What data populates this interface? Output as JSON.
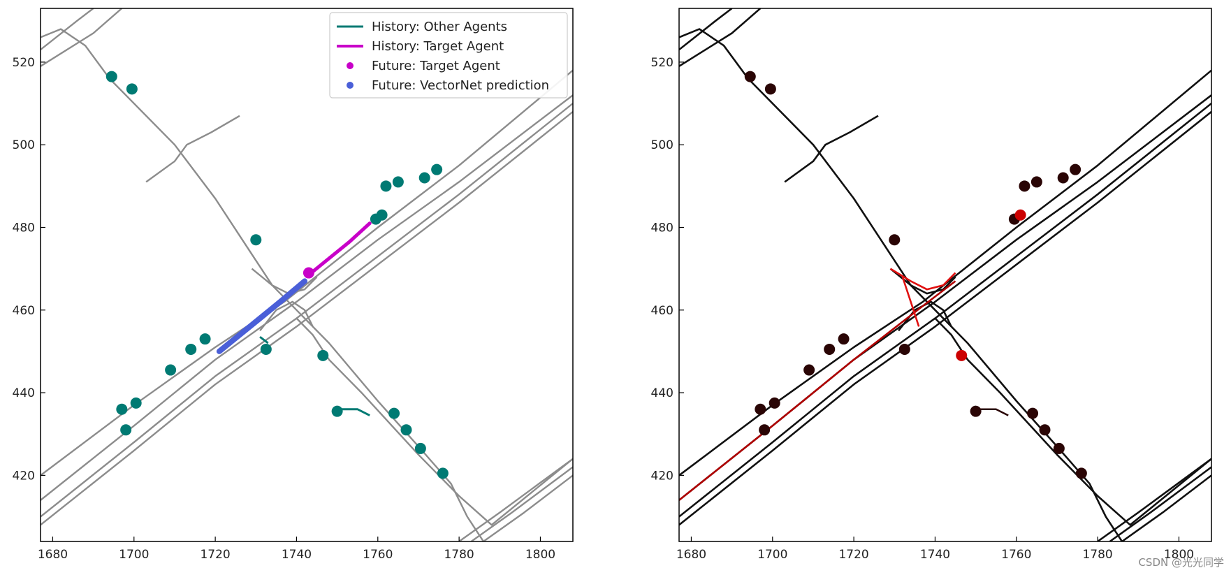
{
  "chart_data": [
    {
      "type": "scatter",
      "title": "",
      "xlabel": "",
      "ylabel": "",
      "xlim": [
        1677,
        1808
      ],
      "ylim": [
        404,
        533
      ],
      "xticks": [
        1680,
        1700,
        1720,
        1740,
        1760,
        1780,
        1800
      ],
      "yticks": [
        420,
        440,
        460,
        480,
        500,
        520
      ],
      "grid": false,
      "legend_position": "top-right",
      "colors": {
        "map": "#8c8c8c",
        "other_agents": "#007a73",
        "target_history": "#c800c8",
        "target_future": "#c800c8",
        "prediction": "#4a5fd8"
      },
      "legend": [
        {
          "label": "History: Other Agents",
          "kind": "line",
          "color": "#007a73"
        },
        {
          "label": "History: Target Agent",
          "kind": "line",
          "color": "#c800c8"
        },
        {
          "label": "Future: Target Agent",
          "kind": "dot",
          "color": "#c800c8"
        },
        {
          "label": "Future: VectorNet prediction",
          "kind": "dot",
          "color": "#4a5fd8"
        }
      ],
      "series": [
        {
          "name": "History: Other Agents",
          "points": [
            [
              1694.5,
              516.5
            ],
            [
              1699.5,
              513.5
            ],
            [
              1730,
              477
            ],
            [
              1761,
              483
            ],
            [
              1759.5,
              482
            ],
            [
              1762,
              490
            ],
            [
              1765,
              491
            ],
            [
              1771.5,
              492
            ],
            [
              1774.5,
              494
            ],
            [
              1717.5,
              453
            ],
            [
              1714,
              450.5
            ],
            [
              1709,
              445.5
            ],
            [
              1700.5,
              437.5
            ],
            [
              1697,
              436
            ],
            [
              1698,
              431
            ],
            [
              1732.5,
              450.5
            ],
            [
              1746.5,
              449
            ],
            [
              1750,
              435.5
            ],
            [
              1764,
              435
            ],
            [
              1767,
              431
            ],
            [
              1770.5,
              426.5
            ],
            [
              1776,
              420.5
            ]
          ],
          "tracks": [
            [
              [
                1750,
                436
              ],
              [
                1755,
                436
              ],
              [
                1758,
                434.5
              ]
            ],
            [
              [
                1731,
                453.5
              ],
              [
                1733,
                452
              ]
            ]
          ]
        },
        {
          "name": "History: Target Agent",
          "path": [
            [
              1743,
              468.5
            ],
            [
              1748,
              472.5
            ],
            [
              1753,
              476.5
            ],
            [
              1758,
              481
            ]
          ]
        },
        {
          "name": "Future: Target Agent",
          "points": [
            [
              1743,
              469
            ]
          ]
        },
        {
          "name": "Future: VectorNet prediction",
          "path": [
            [
              1721,
              450
            ],
            [
              1726,
              454
            ],
            [
              1731,
              458
            ],
            [
              1736,
              462
            ],
            [
              1742,
              467
            ]
          ]
        }
      ]
    },
    {
      "type": "scatter",
      "title": "",
      "xlabel": "",
      "ylabel": "",
      "xlim": [
        1677,
        1808
      ],
      "ylim": [
        404,
        533
      ],
      "xticks": [
        1680,
        1700,
        1720,
        1740,
        1760,
        1780,
        1800
      ],
      "yticks": [
        420,
        440,
        460,
        480,
        500,
        520
      ],
      "grid": false,
      "colors": {
        "map": "#111111",
        "agents": "#2a0505",
        "highlight": "#cc0000"
      },
      "series": [
        {
          "points": [
            [
              1694.5,
              516.5
            ],
            [
              1699.5,
              513.5
            ],
            [
              1730,
              477
            ],
            [
              1759.5,
              482
            ],
            [
              1762,
              490
            ],
            [
              1765,
              491
            ],
            [
              1771.5,
              492
            ],
            [
              1774.5,
              494
            ],
            [
              1717.5,
              453
            ],
            [
              1714,
              450.5
            ],
            [
              1709,
              445.5
            ],
            [
              1700.5,
              437.5
            ],
            [
              1697,
              436
            ],
            [
              1698,
              431
            ],
            [
              1732.5,
              450.5
            ],
            [
              1750,
              435.5
            ],
            [
              1764,
              435
            ],
            [
              1767,
              431
            ],
            [
              1770.5,
              426.5
            ],
            [
              1776,
              420.5
            ]
          ],
          "highlight_points": [
            [
              1761,
              483
            ],
            [
              1746.5,
              449
            ]
          ]
        }
      ]
    }
  ],
  "watermark": "CSDN @光光同学"
}
